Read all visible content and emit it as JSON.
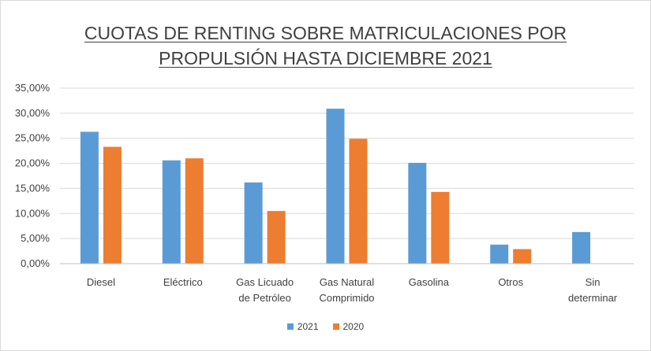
{
  "chart_data": {
    "type": "bar",
    "title_lines": [
      "CUOTAS DE RENTING SOBRE MATRICULACIONES POR",
      "PROPULSIÓN HASTA DICIEMBRE 2021"
    ],
    "categories": [
      [
        "Diesel"
      ],
      [
        "Eléctrico"
      ],
      [
        "Gas Licuado",
        "de Petróleo"
      ],
      [
        "Gas Natural",
        "Comprimido"
      ],
      [
        "Gasolina"
      ],
      [
        "Otros"
      ],
      [
        "Sin",
        "determinar"
      ]
    ],
    "series": [
      {
        "name": "2021",
        "color": "#5b9bd5",
        "values": [
          26.3,
          20.6,
          16.2,
          30.9,
          20.1,
          3.8,
          6.3
        ]
      },
      {
        "name": "2020",
        "color": "#ed7d31",
        "values": [
          23.3,
          21.0,
          10.5,
          24.9,
          14.3,
          2.9,
          null
        ]
      }
    ],
    "y_ticks": [
      "0,00%",
      "5,00%",
      "10,00%",
      "15,00%",
      "20,00%",
      "25,00%",
      "30,00%",
      "35,00%"
    ],
    "ylim": [
      0,
      35
    ],
    "grid": true,
    "legend_position": "bottom"
  }
}
